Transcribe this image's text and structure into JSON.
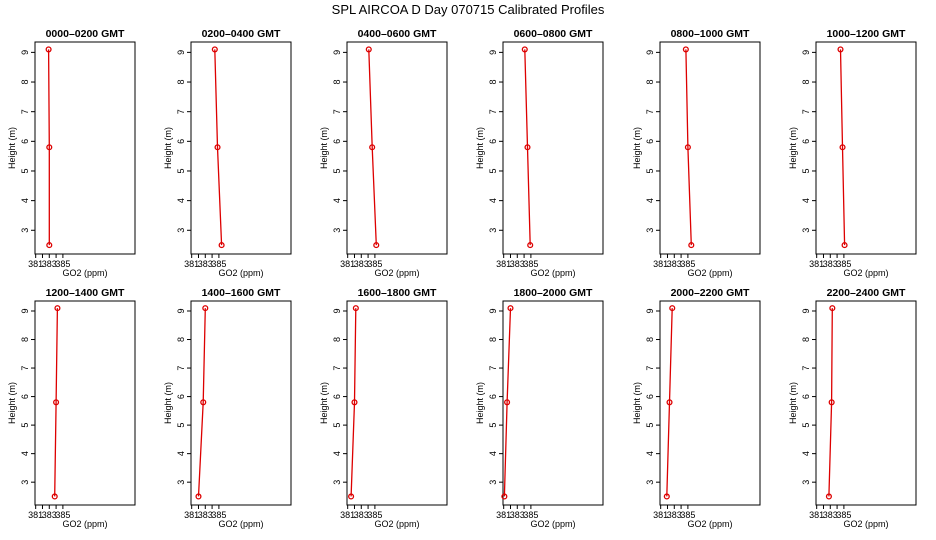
{
  "figure": {
    "title": "SPL AIRCOA D  Day 070715  Calibrated Profiles"
  },
  "colors": {
    "series": "#dd0000",
    "axes": "#000000"
  },
  "chart_data": [
    {
      "type": "line",
      "title": "0000–0200 GMT",
      "xlabel": "GO2 (ppm)",
      "ylabel": "Height (m)",
      "xlim": [
        380.9,
        395.6
      ],
      "ylim": [
        2.2,
        9.35
      ],
      "xticks": [
        381,
        383,
        385
      ],
      "xticks_all": [
        381,
        382,
        383,
        384,
        385
      ],
      "yticks": [
        3,
        4,
        5,
        6,
        7,
        8,
        9
      ],
      "grid": false,
      "x": [
        382.9,
        383.0,
        383.0
      ],
      "y": [
        9.1,
        5.8,
        2.5
      ]
    },
    {
      "type": "line",
      "title": "0200–0400 GMT",
      "xlabel": "GO2 (ppm)",
      "ylabel": "Height (m)",
      "xlim": [
        380.9,
        395.6
      ],
      "ylim": [
        2.2,
        9.35
      ],
      "xticks": [
        381,
        383,
        385
      ],
      "xticks_all": [
        381,
        382,
        383,
        384,
        385
      ],
      "yticks": [
        3,
        4,
        5,
        6,
        7,
        8,
        9
      ],
      "grid": false,
      "x": [
        384.4,
        384.8,
        385.4
      ],
      "y": [
        9.1,
        5.8,
        2.5
      ]
    },
    {
      "type": "line",
      "title": "0400–0600 GMT",
      "xlabel": "GO2 (ppm)",
      "ylabel": "Height (m)",
      "xlim": [
        380.9,
        395.6
      ],
      "ylim": [
        2.2,
        9.35
      ],
      "xticks": [
        381,
        383,
        385
      ],
      "xticks_all": [
        381,
        382,
        383,
        384,
        385
      ],
      "yticks": [
        3,
        4,
        5,
        6,
        7,
        8,
        9
      ],
      "grid": false,
      "x": [
        384.1,
        384.6,
        385.2
      ],
      "y": [
        9.1,
        5.8,
        2.5
      ]
    },
    {
      "type": "line",
      "title": "0600–0800 GMT",
      "xlabel": "GO2 (ppm)",
      "ylabel": "Height (m)",
      "xlim": [
        380.9,
        395.6
      ],
      "ylim": [
        2.2,
        9.35
      ],
      "xticks": [
        381,
        383,
        385
      ],
      "xticks_all": [
        381,
        382,
        383,
        384,
        385
      ],
      "yticks": [
        3,
        4,
        5,
        6,
        7,
        8,
        9
      ],
      "grid": false,
      "x": [
        384.1,
        384.5,
        384.9
      ],
      "y": [
        9.1,
        5.8,
        2.5
      ]
    },
    {
      "type": "line",
      "title": "0800–1000 GMT",
      "xlabel": "GO2 (ppm)",
      "ylabel": "Height (m)",
      "xlim": [
        380.9,
        395.6
      ],
      "ylim": [
        2.2,
        9.35
      ],
      "xticks": [
        381,
        383,
        385
      ],
      "xticks_all": [
        381,
        382,
        383,
        384,
        385
      ],
      "yticks": [
        3,
        4,
        5,
        6,
        7,
        8,
        9
      ],
      "grid": false,
      "x": [
        384.7,
        385.0,
        385.5
      ],
      "y": [
        9.1,
        5.8,
        2.5
      ]
    },
    {
      "type": "line",
      "title": "1000–1200 GMT",
      "xlabel": "GO2 (ppm)",
      "ylabel": "Height (m)",
      "xlim": [
        380.9,
        395.6
      ],
      "ylim": [
        2.2,
        9.35
      ],
      "xticks": [
        381,
        383,
        385
      ],
      "xticks_all": [
        381,
        382,
        383,
        384,
        385
      ],
      "yticks": [
        3,
        4,
        5,
        6,
        7,
        8,
        9
      ],
      "grid": false,
      "x": [
        384.5,
        384.8,
        385.1
      ],
      "y": [
        9.1,
        5.8,
        2.5
      ]
    },
    {
      "type": "line",
      "title": "1200–1400 GMT",
      "xlabel": "GO2 (ppm)",
      "ylabel": "Height (m)",
      "xlim": [
        380.9,
        395.6
      ],
      "ylim": [
        2.2,
        9.35
      ],
      "xticks": [
        381,
        383,
        385
      ],
      "xticks_all": [
        381,
        382,
        383,
        384,
        385
      ],
      "yticks": [
        3,
        4,
        5,
        6,
        7,
        8,
        9
      ],
      "grid": false,
      "x": [
        384.2,
        384.0,
        383.8
      ],
      "y": [
        9.1,
        5.8,
        2.5
      ]
    },
    {
      "type": "line",
      "title": "1400–1600 GMT",
      "xlabel": "GO2 (ppm)",
      "ylabel": "Height (m)",
      "xlim": [
        380.9,
        395.6
      ],
      "ylim": [
        2.2,
        9.35
      ],
      "xticks": [
        381,
        383,
        385
      ],
      "xticks_all": [
        381,
        382,
        383,
        384,
        385
      ],
      "yticks": [
        3,
        4,
        5,
        6,
        7,
        8,
        9
      ],
      "grid": false,
      "x": [
        383.0,
        382.7,
        382.0
      ],
      "y": [
        9.1,
        5.8,
        2.5
      ]
    },
    {
      "type": "line",
      "title": "1600–1800 GMT",
      "xlabel": "GO2 (ppm)",
      "ylabel": "Height (m)",
      "xlim": [
        380.9,
        395.6
      ],
      "ylim": [
        2.2,
        9.35
      ],
      "xticks": [
        381,
        383,
        385
      ],
      "xticks_all": [
        381,
        382,
        383,
        384,
        385
      ],
      "yticks": [
        3,
        4,
        5,
        6,
        7,
        8,
        9
      ],
      "grid": false,
      "x": [
        382.2,
        382.0,
        381.5
      ],
      "y": [
        9.1,
        5.8,
        2.5
      ]
    },
    {
      "type": "line",
      "title": "1800–2000 GMT",
      "xlabel": "GO2 (ppm)",
      "ylabel": "Height (m)",
      "xlim": [
        380.9,
        395.6
      ],
      "ylim": [
        2.2,
        9.35
      ],
      "xticks": [
        381,
        383,
        385
      ],
      "xticks_all": [
        381,
        382,
        383,
        384,
        385
      ],
      "yticks": [
        3,
        4,
        5,
        6,
        7,
        8,
        9
      ],
      "grid": false,
      "x": [
        382.0,
        381.5,
        381.1
      ],
      "y": [
        9.1,
        5.8,
        2.5
      ]
    },
    {
      "type": "line",
      "title": "2000–2200 GMT",
      "xlabel": "GO2 (ppm)",
      "ylabel": "Height (m)",
      "xlim": [
        380.9,
        395.6
      ],
      "ylim": [
        2.2,
        9.35
      ],
      "xticks": [
        381,
        383,
        385
      ],
      "xticks_all": [
        381,
        382,
        383,
        384,
        385
      ],
      "yticks": [
        3,
        4,
        5,
        6,
        7,
        8,
        9
      ],
      "grid": false,
      "x": [
        382.7,
        382.3,
        381.9
      ],
      "y": [
        9.1,
        5.8,
        2.5
      ]
    },
    {
      "type": "line",
      "title": "2200–2400 GMT",
      "xlabel": "GO2 (ppm)",
      "ylabel": "Height (m)",
      "xlim": [
        380.9,
        395.6
      ],
      "ylim": [
        2.2,
        9.35
      ],
      "xticks": [
        381,
        383,
        385
      ],
      "xticks_all": [
        381,
        382,
        383,
        384,
        385
      ],
      "yticks": [
        3,
        4,
        5,
        6,
        7,
        8,
        9
      ],
      "grid": false,
      "x": [
        383.3,
        383.2,
        382.8
      ],
      "y": [
        9.1,
        5.8,
        2.5
      ]
    }
  ]
}
